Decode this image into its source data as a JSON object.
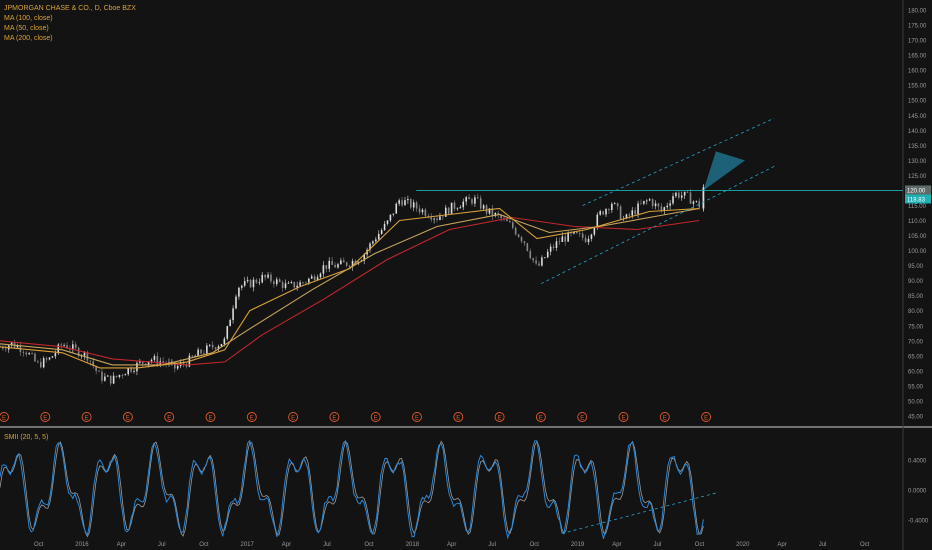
{
  "legend": {
    "symbol_line": "JPMORGAN CHASE & CO., D, Cboe BZX",
    "ma100": "MA (100, close)",
    "ma50": "MA (50, close)",
    "ma200": "MA (200, close)"
  },
  "indicator": {
    "title": "SMII (20, 5, 5)"
  },
  "colors": {
    "background": "#131313",
    "up_candle": "#dcdcdc",
    "down_candle": "#888888",
    "ma50": "#d9a13a",
    "ma100": "#c9a55a",
    "ma200": "#c0272d",
    "channel": "#26a3c9",
    "resistance": "#1fb0b4",
    "smi_line": "#2a86d6",
    "smi_signal": "#9a9a9a",
    "earnings_marker": "#e05a2b",
    "axis_text": "#9a9a9a"
  },
  "chart_data": [
    {
      "type": "candlestick",
      "title": "JPMORGAN CHASE & CO., D, Cboe BZX",
      "price_axis": {
        "ylim": [
          45,
          180
        ],
        "ticks": [
          "45.00",
          "50.00",
          "55.00",
          "60.00",
          "65.00",
          "70.00",
          "75.00",
          "80.00",
          "85.00",
          "90.00",
          "95.00",
          "100.00",
          "105.00",
          "110.00",
          "115.00",
          "120.00",
          "125.00",
          "130.00",
          "135.00",
          "140.00",
          "145.00",
          "150.00",
          "155.00",
          "160.00",
          "165.00",
          "170.00",
          "175.00",
          "180.00"
        ],
        "last_price_label": "120.00",
        "second_label": "118.83"
      },
      "x_ticks": [
        "Oct",
        "2016",
        "Apr",
        "Jul",
        "Oct",
        "2017",
        "Apr",
        "Jul",
        "Oct",
        "2018",
        "Apr",
        "Jul",
        "Oct",
        "2019",
        "Apr",
        "Jul",
        "Oct",
        "2020",
        "Apr",
        "Jul",
        "Oct"
      ],
      "earnings_markers": [
        "E",
        "E",
        "E",
        "E",
        "E",
        "E",
        "E",
        "E",
        "E",
        "E",
        "E",
        "E",
        "E",
        "E",
        "E",
        "E",
        "E",
        "E"
      ],
      "price_path": [
        [
          0,
          68
        ],
        [
          3,
          69
        ],
        [
          6,
          67
        ],
        [
          9,
          62
        ],
        [
          12,
          64
        ],
        [
          15,
          69
        ],
        [
          18,
          67
        ],
        [
          21,
          65
        ],
        [
          24,
          58
        ],
        [
          27,
          57
        ],
        [
          30,
          60
        ],
        [
          33,
          62
        ],
        [
          36,
          64
        ],
        [
          39,
          63
        ],
        [
          42,
          61
        ],
        [
          45,
          63
        ],
        [
          48,
          66
        ],
        [
          51,
          68
        ],
        [
          54,
          70
        ],
        [
          57,
          88
        ],
        [
          60,
          89
        ],
        [
          63,
          91
        ],
        [
          66,
          90
        ],
        [
          69,
          88
        ],
        [
          72,
          89
        ],
        [
          75,
          91
        ],
        [
          78,
          95
        ],
        [
          81,
          95
        ],
        [
          84,
          96
        ],
        [
          87,
          98
        ],
        [
          90,
          104
        ],
        [
          93,
          109
        ],
        [
          96,
          117
        ],
        [
          99,
          115
        ],
        [
          102,
          113
        ],
        [
          105,
          111
        ],
        [
          108,
          114
        ],
        [
          111,
          116
        ],
        [
          114,
          117
        ],
        [
          117,
          113
        ],
        [
          120,
          111
        ],
        [
          123,
          108
        ],
        [
          126,
          103
        ],
        [
          129,
          94
        ],
        [
          132,
          100
        ],
        [
          135,
          104
        ],
        [
          138,
          105
        ],
        [
          141,
          104
        ],
        [
          144,
          112
        ],
        [
          147,
          116
        ],
        [
          150,
          110
        ],
        [
          153,
          114
        ],
        [
          156,
          117
        ],
        [
          159,
          113
        ],
        [
          162,
          119
        ],
        [
          165,
          118
        ],
        [
          168,
          115
        ]
      ],
      "moving_averages": {
        "ma50": [
          [
            0,
            68
          ],
          [
            15,
            66
          ],
          [
            24,
            61
          ],
          [
            33,
            61
          ],
          [
            45,
            63
          ],
          [
            54,
            67
          ],
          [
            60,
            80
          ],
          [
            72,
            88
          ],
          [
            84,
            94
          ],
          [
            96,
            110
          ],
          [
            108,
            112
          ],
          [
            120,
            114
          ],
          [
            129,
            104
          ],
          [
            141,
            107
          ],
          [
            156,
            113
          ],
          [
            168,
            114
          ]
        ],
        "ma100": [
          [
            0,
            69
          ],
          [
            15,
            67
          ],
          [
            27,
            62
          ],
          [
            39,
            62
          ],
          [
            51,
            66
          ],
          [
            60,
            74
          ],
          [
            75,
            87
          ],
          [
            90,
            99
          ],
          [
            105,
            108
          ],
          [
            120,
            112
          ],
          [
            132,
            106
          ],
          [
            144,
            108
          ],
          [
            156,
            111
          ],
          [
            168,
            114
          ]
        ],
        "ma200": [
          [
            0,
            70
          ],
          [
            15,
            68
          ],
          [
            27,
            64
          ],
          [
            45,
            62
          ],
          [
            54,
            63
          ],
          [
            63,
            72
          ],
          [
            78,
            84
          ],
          [
            93,
            97
          ],
          [
            108,
            107
          ],
          [
            123,
            111
          ],
          [
            138,
            108
          ],
          [
            153,
            107
          ],
          [
            168,
            110
          ]
        ]
      },
      "channel": {
        "lower": [
          [
            130,
            89
          ],
          [
            186,
            128
          ]
        ],
        "upper": [
          [
            140,
            115
          ],
          [
            186,
            144
          ]
        ]
      },
      "resistance": 120
    },
    {
      "type": "line",
      "title": "SMII (20, 5, 5)",
      "ylim": [
        -0.6,
        0.8
      ],
      "y_ticks": [
        "0.4000",
        "0.0000",
        "-0.4000"
      ],
      "trendline": [
        [
          135,
          -0.58
        ],
        [
          172,
          -0.04
        ]
      ]
    }
  ]
}
